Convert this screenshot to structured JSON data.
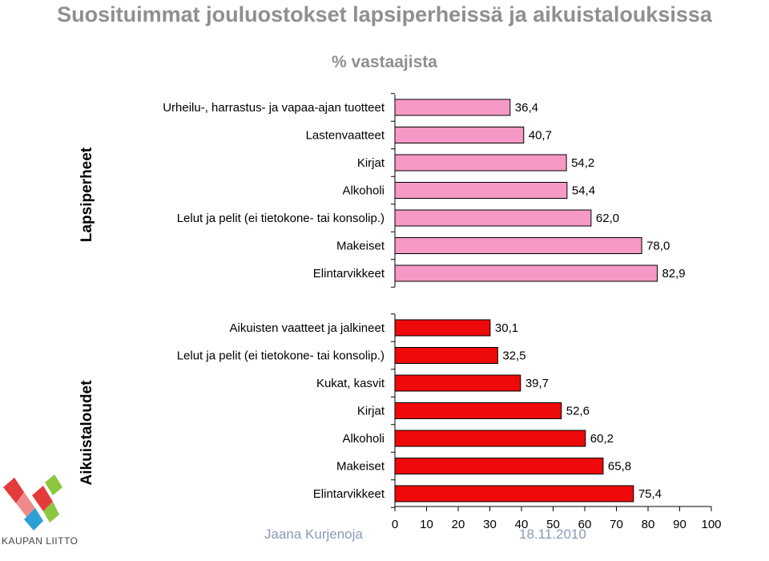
{
  "title": "Suosituimmat jouluostokset lapsiperheissä ja aikuistalouksissa",
  "subtitle": "% vastaajista",
  "colors": {
    "lapsiperheet_bar": "#f799c6",
    "aikuistaloudet_bar": "#ee0a0a",
    "title_gray": "#8f8f8f",
    "footer": "#8a9ab8"
  },
  "footer": {
    "author": "Jaana Kurjenoja",
    "date": "18.11.2010"
  },
  "logo": {
    "text": "KAUPAN LIITTO",
    "icon": "kaupan-liitto-logo-icon"
  },
  "chart_data": {
    "type": "bar",
    "orientation": "horizontal",
    "title": "Suosituimmat jouluostokset lapsiperheissä ja aikuistalouksissa",
    "subtitle": "% vastaajista",
    "xlim": [
      0,
      100
    ],
    "xticks": [
      "0",
      "10",
      "20",
      "30",
      "40",
      "50",
      "60",
      "70",
      "80",
      "90",
      "100"
    ],
    "groups": [
      {
        "name": "Lapsiperheet",
        "color": "#f799c6",
        "categories": [
          "Urheilu-, harrastus- ja vapaa-ajan tuotteet",
          "Lastenvaatteet",
          "Kirjat",
          "Alkoholi",
          "Lelut ja pelit (ei tietokone- tai konsolip.)",
          "Makeiset",
          "Elintarvikkeet"
        ],
        "values": [
          36.4,
          40.7,
          54.2,
          54.4,
          62.0,
          78.0,
          82.9
        ],
        "labels": [
          "36,4",
          "40,7",
          "54,2",
          "54,4",
          "62,0",
          "78,0",
          "82,9"
        ]
      },
      {
        "name": "Aikuistaloudet",
        "color": "#ee0a0a",
        "categories": [
          "Aikuisten vaatteet ja jalkineet",
          "Lelut ja pelit (ei tietokone- tai konsolip.)",
          "Kukat, kasvit",
          "Kirjat",
          "Alkoholi",
          "Makeiset",
          "Elintarvikkeet"
        ],
        "values": [
          30.1,
          32.5,
          39.7,
          52.6,
          60.2,
          65.8,
          75.4
        ],
        "labels": [
          "30,1",
          "32,5",
          "39,7",
          "52,6",
          "60,2",
          "65,8",
          "75,4"
        ]
      }
    ]
  }
}
